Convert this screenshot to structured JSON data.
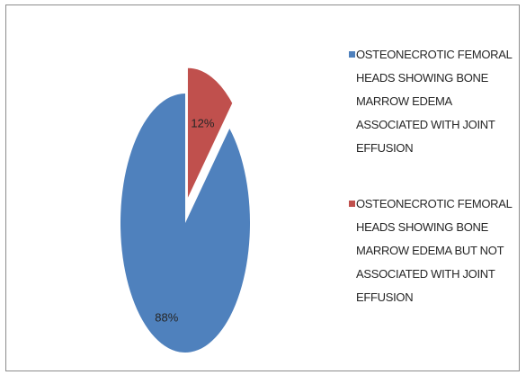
{
  "chart_data": {
    "type": "pie",
    "title": "",
    "slices": [
      {
        "label": "OSTEONECROTIC FEMORAL HEADS SHOWING BONE MARROW EDEMA ASSOCIATED WITH JOINT EFFUSION",
        "value": 88,
        "display": "88%",
        "color": "#4f81bd"
      },
      {
        "label": "OSTEONECROTIC FEMORAL HEADS SHOWING BONE MARROW EDEMA BUT NOT ASSOCIATED WITH JOINT EFFUSION",
        "value": 12,
        "display": "12%",
        "color": "#c0504d"
      }
    ],
    "legend_position": "right",
    "exploded_slice": 1
  }
}
